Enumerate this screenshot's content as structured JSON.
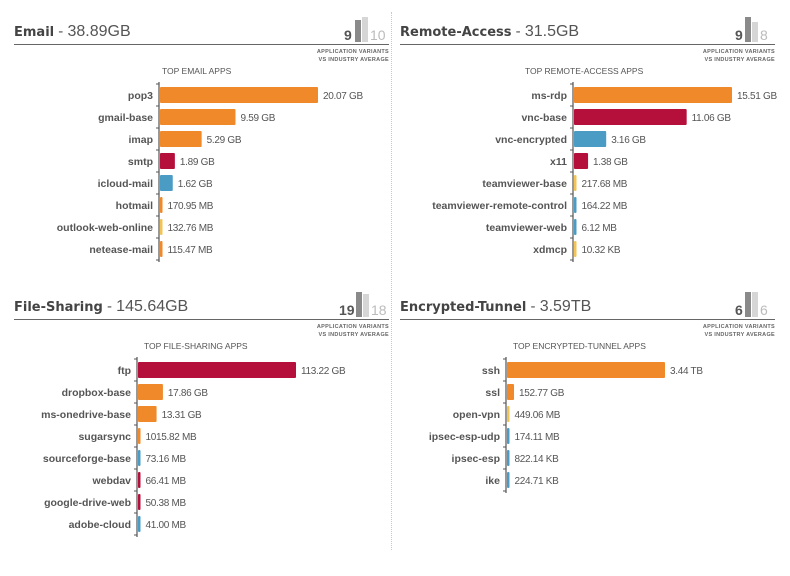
{
  "variant_caption": [
    "APPLICATION VARIANTS",
    "VS INDUSTRY AVERAGE"
  ],
  "colors": {
    "orange": "#f0892a",
    "crimson": "#b5103c",
    "blue": "#4b9cc5",
    "yellow": "#f2c455",
    "axis": "#555555",
    "text": "#444444"
  },
  "panels": [
    {
      "category": "Email",
      "separator": " - ",
      "total": "38.89GB",
      "app_variants": "9",
      "industry_average": "10",
      "chart_title": "TOP EMAIL APPS"
    },
    {
      "category": "Remote-Access",
      "separator": " - ",
      "total": "31.5GB",
      "app_variants": "9",
      "industry_average": "8",
      "chart_title": "TOP REMOTE-ACCESS APPS"
    },
    {
      "category": "File-Sharing",
      "separator": " - ",
      "total": "145.64GB",
      "app_variants": "19",
      "industry_average": "18",
      "chart_title": "TOP FILE-SHARING APPS"
    },
    {
      "category": "Encrypted-Tunnel",
      "separator": " - ",
      "total": "3.59TB",
      "app_variants": "6",
      "industry_average": "6",
      "chart_title": "TOP ENCRYPTED-TUNNEL APPS"
    }
  ],
  "chart_data": [
    {
      "type": "bar",
      "orientation": "horizontal",
      "title": "TOP EMAIL APPS",
      "unit": "GB",
      "categories": [
        "pop3",
        "gmail-base",
        "imap",
        "smtp",
        "icloud-mail",
        "hotmail",
        "outlook-web-online",
        "netease-mail"
      ],
      "values": [
        20.07,
        9.59,
        5.29,
        1.89,
        1.62,
        0.17095,
        0.13276,
        0.11547
      ],
      "labels": [
        "20.07 GB",
        "9.59 GB",
        "5.29 GB",
        "1.89 GB",
        "1.62 GB",
        "170.95 MB",
        "132.76 MB",
        "115.47 MB"
      ],
      "colors": [
        "orange",
        "orange",
        "orange",
        "crimson",
        "blue",
        "orange",
        "yellow",
        "orange"
      ]
    },
    {
      "type": "bar",
      "orientation": "horizontal",
      "title": "TOP REMOTE-ACCESS APPS",
      "unit": "GB",
      "categories": [
        "ms-rdp",
        "vnc-base",
        "vnc-encrypted",
        "x11",
        "teamviewer-base",
        "teamviewer-remote-control",
        "teamviewer-web",
        "xdmcp"
      ],
      "values": [
        15.51,
        11.06,
        3.16,
        1.38,
        0.21768,
        0.16422,
        0.00612,
        1.032e-05
      ],
      "labels": [
        "15.51 GB",
        "11.06 GB",
        "3.16 GB",
        "1.38 GB",
        "217.68 MB",
        "164.22 MB",
        "6.12 MB",
        "10.32 KB"
      ],
      "colors": [
        "orange",
        "crimson",
        "blue",
        "crimson",
        "yellow",
        "blue",
        "blue",
        "yellow"
      ]
    },
    {
      "type": "bar",
      "orientation": "horizontal",
      "title": "TOP FILE-SHARING APPS",
      "unit": "GB",
      "categories": [
        "ftp",
        "dropbox-base",
        "ms-onedrive-base",
        "sugarsync",
        "sourceforge-base",
        "webdav",
        "google-drive-web",
        "adobe-cloud"
      ],
      "values": [
        113.22,
        17.86,
        13.31,
        1.01582,
        0.07316,
        0.06641,
        0.05038,
        0.041
      ],
      "labels": [
        "113.22 GB",
        "17.86 GB",
        "13.31 GB",
        "1015.82 MB",
        "73.16 MB",
        "66.41 MB",
        "50.38 MB",
        "41.00 MB"
      ],
      "colors": [
        "crimson",
        "orange",
        "orange",
        "orange",
        "blue",
        "crimson",
        "crimson",
        "blue"
      ]
    },
    {
      "type": "bar",
      "orientation": "horizontal",
      "title": "TOP ENCRYPTED-TUNNEL APPS",
      "unit": "GB",
      "categories": [
        "ssh",
        "ssl",
        "open-vpn",
        "ipsec-esp-udp",
        "ipsec-esp",
        "ike"
      ],
      "values": [
        3440,
        152.77,
        0.44906,
        0.17411,
        0.00082214,
        0.00022471
      ],
      "labels": [
        "3.44 TB",
        "152.77 GB",
        "449.06 MB",
        "174.11 MB",
        "822.14 KB",
        "224.71 KB"
      ],
      "colors": [
        "orange",
        "orange",
        "yellow",
        "blue",
        "blue",
        "blue"
      ]
    }
  ]
}
